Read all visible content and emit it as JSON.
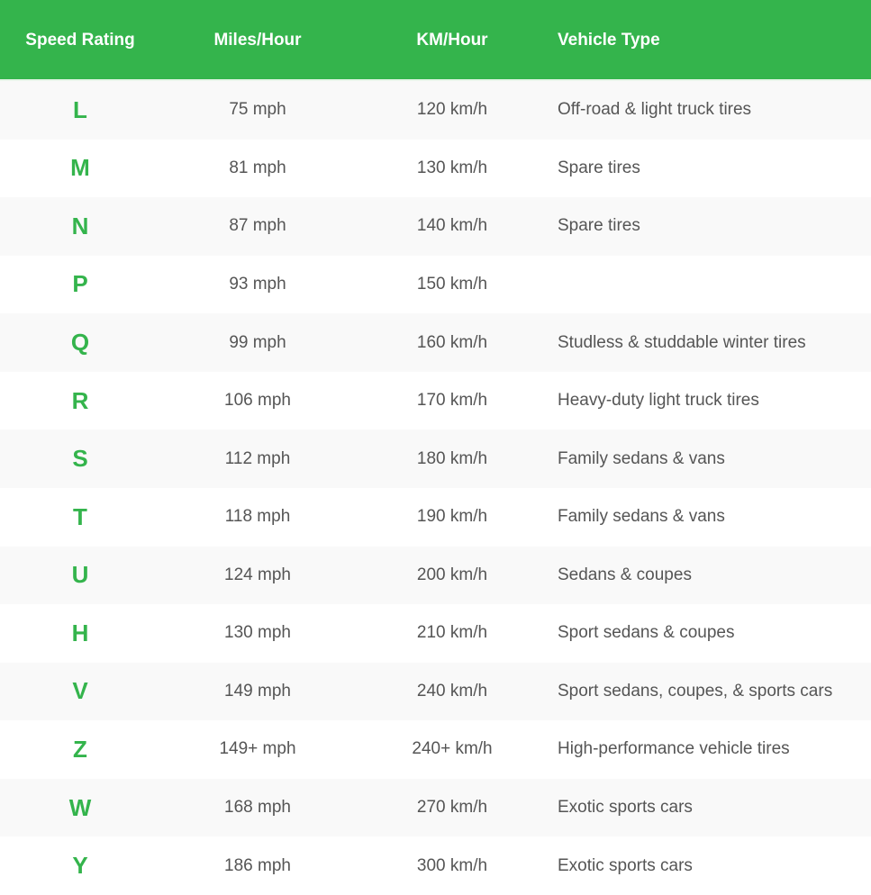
{
  "colors": {
    "accent": "#34b44c",
    "row_alt": "#f9f9f9",
    "text": "#555555"
  },
  "headers": [
    "Speed Rating",
    "Miles/Hour",
    "KM/Hour",
    "Vehicle Type"
  ],
  "rows": [
    [
      "L",
      "75 mph",
      "120 km/h",
      "Off-road & light truck tires"
    ],
    [
      "M",
      "81 mph",
      "130 km/h",
      "Spare tires"
    ],
    [
      "N",
      "87 mph",
      "140 km/h",
      "Spare tires"
    ],
    [
      "P",
      "93 mph",
      "150 km/h",
      ""
    ],
    [
      "Q",
      "99 mph",
      "160 km/h",
      "Studless & studdable winter tires"
    ],
    [
      "R",
      "106 mph",
      "170 km/h",
      "Heavy-duty light truck tires"
    ],
    [
      "S",
      "112 mph",
      "180 km/h",
      "Family sedans & vans"
    ],
    [
      "T",
      "118 mph",
      "190 km/h",
      "Family sedans & vans"
    ],
    [
      "U",
      "124 mph",
      "200 km/h",
      "Sedans & coupes"
    ],
    [
      "H",
      "130 mph",
      "210 km/h",
      "Sport sedans & coupes"
    ],
    [
      "V",
      "149 mph",
      "240 km/h",
      "Sport sedans, coupes, & sports cars"
    ],
    [
      "Z",
      "149+ mph",
      "240+ km/h",
      "High-performance vehicle tires"
    ],
    [
      "W",
      "168 mph",
      "270 km/h",
      "Exotic sports cars"
    ],
    [
      "Y",
      "186 mph",
      "300 km/h",
      "Exotic sports cars"
    ]
  ]
}
